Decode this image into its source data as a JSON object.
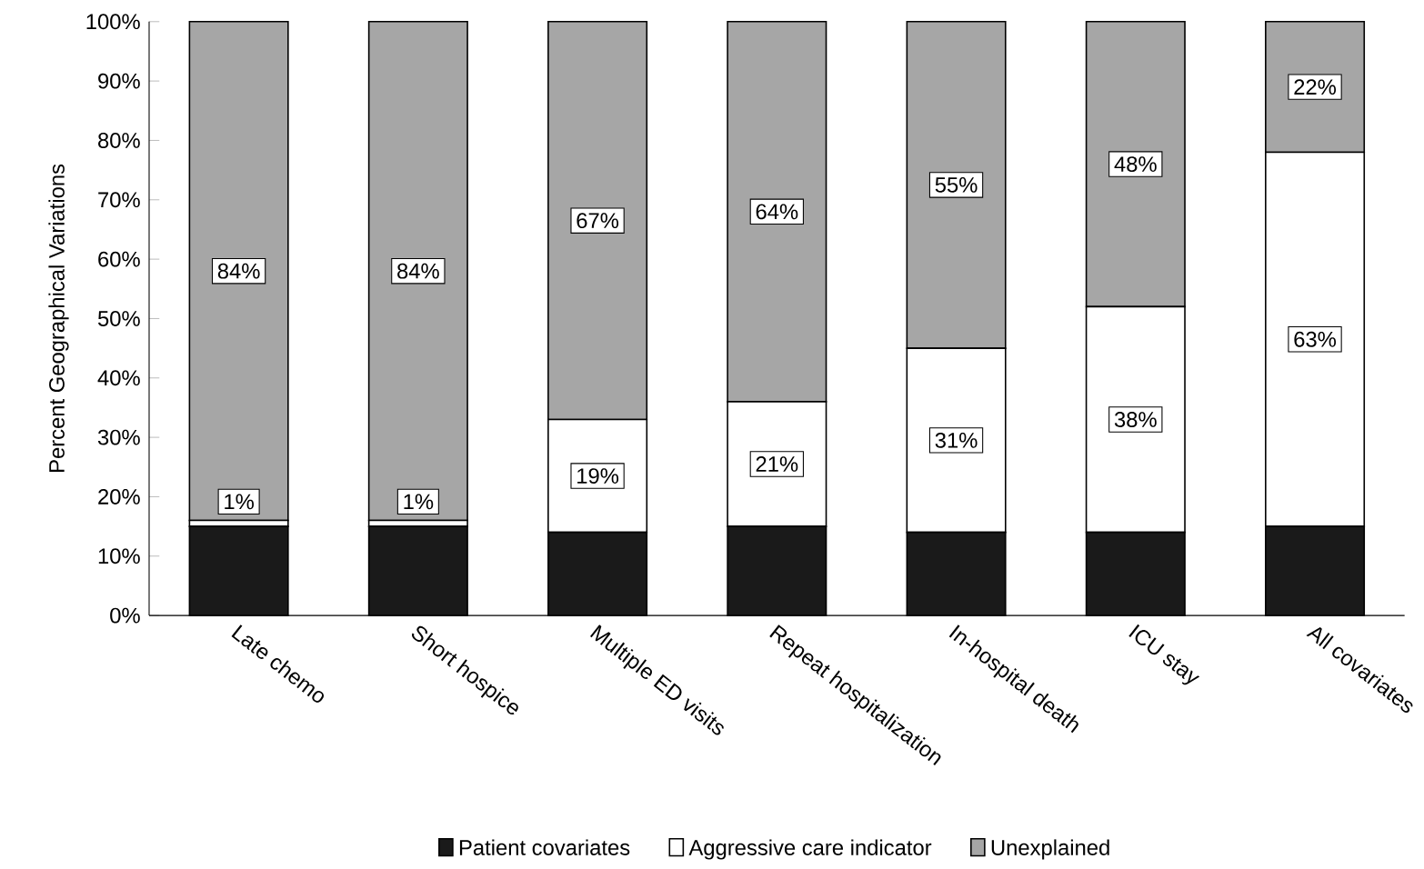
{
  "chart_data": {
    "type": "bar",
    "stacked": true,
    "ylabel": "Percent Geographical Variations",
    "categories": [
      "Late chemo",
      "Short hospice",
      "Multiple ED visits",
      "Repeat hospitalization",
      "In-hospital death",
      "ICU stay",
      "All covariates"
    ],
    "series": [
      {
        "name": "Patient covariates",
        "color": "#1a1a1a",
        "values": [
          15,
          15,
          14,
          15,
          14,
          14,
          15
        ]
      },
      {
        "name": "Aggressive care indicator",
        "color": "#ffffff",
        "values": [
          1,
          1,
          19,
          21,
          31,
          38,
          63
        ],
        "value_labels": [
          "1%",
          "1%",
          "19%",
          "21%",
          "31%",
          "38%",
          "63%"
        ]
      },
      {
        "name": "Unexplained",
        "color": "#a6a6a6",
        "values": [
          84,
          84,
          67,
          64,
          55,
          48,
          22
        ],
        "value_labels": [
          "84%",
          "84%",
          "67%",
          "64%",
          "55%",
          "48%",
          "22%"
        ]
      }
    ],
    "ylim": [
      0,
      100
    ],
    "yticks": [
      {
        "value": 0,
        "label": "0%"
      },
      {
        "value": 10,
        "label": "10%"
      },
      {
        "value": 20,
        "label": "20%"
      },
      {
        "value": 30,
        "label": "30%"
      },
      {
        "value": 40,
        "label": "40%"
      },
      {
        "value": 50,
        "label": "50%"
      },
      {
        "value": 60,
        "label": "60%"
      },
      {
        "value": 70,
        "label": "70%"
      },
      {
        "value": 80,
        "label": "80%"
      },
      {
        "value": 90,
        "label": "90%"
      },
      {
        "value": 100,
        "label": "100%"
      }
    ],
    "legend": "bottom"
  }
}
